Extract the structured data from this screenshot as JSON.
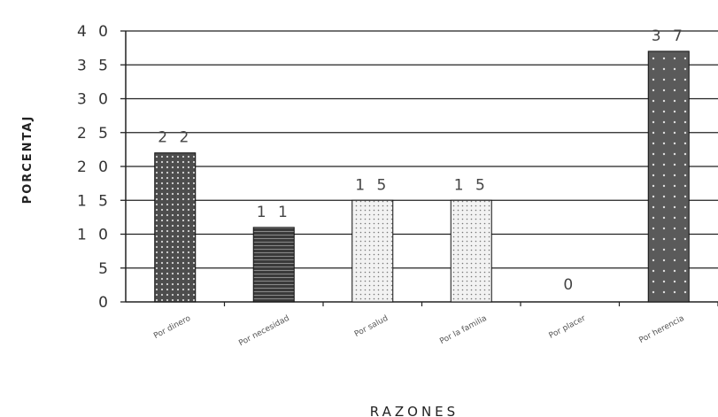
{
  "chart_data": {
    "type": "bar",
    "title": "",
    "xlabel": "RAZONES",
    "ylabel": "PORCENTAJ",
    "ylim": [
      0,
      40
    ],
    "yticks": [
      0,
      5,
      10,
      15,
      20,
      25,
      30,
      35,
      40
    ],
    "grid": true,
    "categories": [
      "Por dinero",
      "Por necesidad",
      "Por salud",
      "Por la familia",
      "Por placer",
      "Por herencia"
    ],
    "values": [
      22,
      11,
      15,
      15,
      0,
      37
    ],
    "value_labels": [
      "2 2",
      "1 1",
      "1 5",
      "1 5",
      "0",
      "3 7"
    ],
    "bar_styles": [
      "dark-dots",
      "dark-lines",
      "light-dots",
      "light-dots",
      "none",
      "dark-dots"
    ]
  }
}
